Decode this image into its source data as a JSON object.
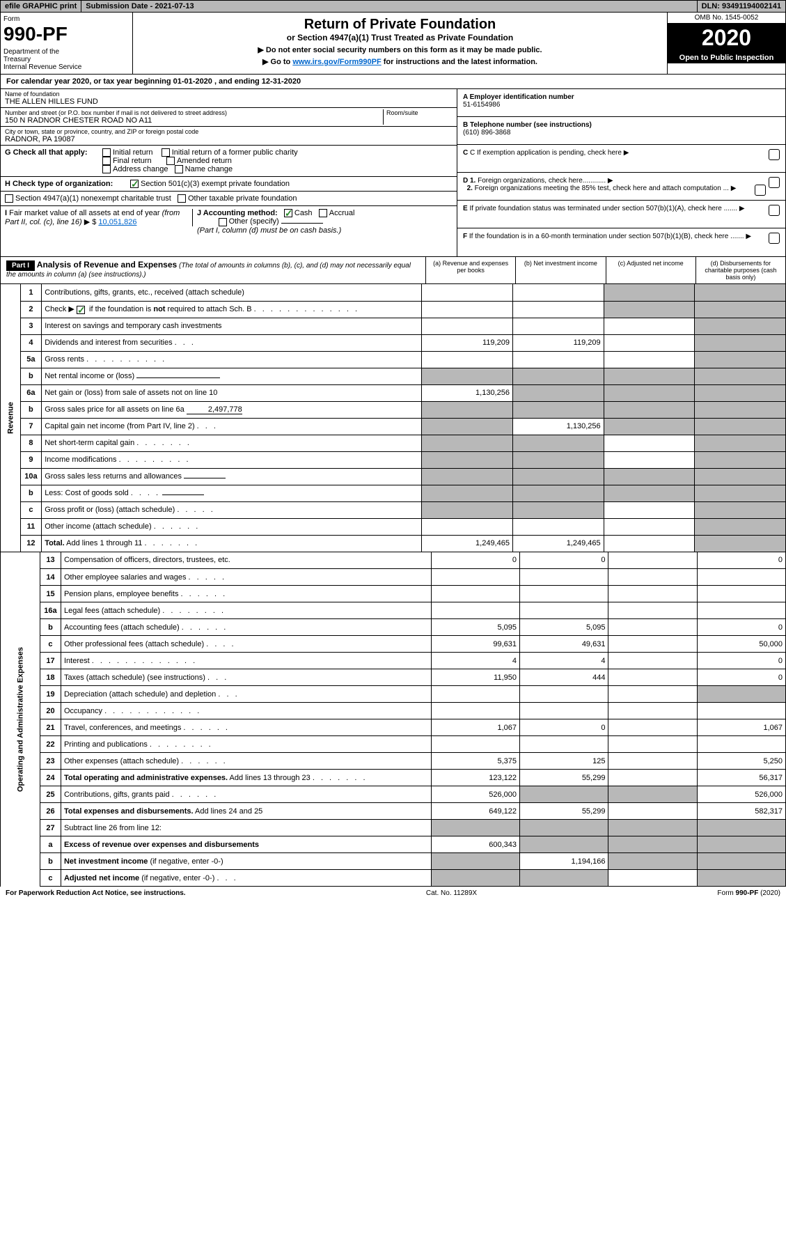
{
  "topbar": {
    "efile": "efile GRAPHIC print",
    "submission": "Submission Date - 2021-07-13",
    "dln": "DLN: 93491194002141"
  },
  "header": {
    "form_label": "Form",
    "form_num": "990-PF",
    "dept": "Department of the Treasury\nInternal Revenue Service",
    "title": "Return of Private Foundation",
    "subtitle": "or Section 4947(a)(1) Trust Treated as Private Foundation",
    "instr1": "▶ Do not enter social security numbers on this form as it may be made public.",
    "instr2_pre": "▶ Go to ",
    "instr2_link": "www.irs.gov/Form990PF",
    "instr2_post": " for instructions and the latest information.",
    "omb": "OMB No. 1545-0052",
    "year": "2020",
    "open": "Open to Public Inspection"
  },
  "calyear": "For calendar year 2020, or tax year beginning 01-01-2020                         , and ending 12-31-2020",
  "info": {
    "name_lbl": "Name of foundation",
    "name": "THE ALLEN HILLES FUND",
    "addr_lbl": "Number and street (or P.O. box number if mail is not delivered to street address)",
    "addr": "150 N RADNOR CHESTER ROAD NO A11",
    "room_lbl": "Room/suite",
    "city_lbl": "City or town, state or province, country, and ZIP or foreign postal code",
    "city": "RADNOR, PA  19087",
    "g_lbl": "G Check all that apply:",
    "g_initial": "Initial return",
    "g_initial_former": "Initial return of a former public charity",
    "g_final": "Final return",
    "g_amended": "Amended return",
    "g_addr": "Address change",
    "g_name": "Name change",
    "h_lbl": "H Check type of organization:",
    "h_501": "Section 501(c)(3) exempt private foundation",
    "h_4947": "Section 4947(a)(1) nonexempt charitable trust",
    "h_other": "Other taxable private foundation",
    "i_lbl": "I Fair market value of all assets at end of year (from Part II, col. (c), line 16) ▶ $ ",
    "i_val": "10,051,826",
    "j_lbl": "J Accounting method:",
    "j_cash": "Cash",
    "j_accrual": "Accrual",
    "j_other": "Other (specify)",
    "j_note": "(Part I, column (d) must be on cash basis.)",
    "a_lbl": "A Employer identification number",
    "a_val": "51-6154986",
    "b_lbl": "B Telephone number (see instructions)",
    "b_val": "(610) 896-3868",
    "c_lbl": "C If exemption application is pending, check here",
    "d1_lbl": "D 1. Foreign organizations, check here............",
    "d2_lbl": "2. Foreign organizations meeting the 85% test, check here and attach computation ...",
    "e_lbl": "E If private foundation status was terminated under section 507(b)(1)(A), check here .......",
    "f_lbl": "F If the foundation is in a 60-month termination under section 507(b)(1)(B), check here ......."
  },
  "part1": {
    "label": "Part I",
    "title": "Analysis of Revenue and Expenses",
    "note": " (The total of amounts in columns (b), (c), and (d) may not necessarily equal the amounts in column (a) (see instructions).)",
    "col_a": "(a)   Revenue and expenses per books",
    "col_b": "(b)   Net investment income",
    "col_c": "(c)   Adjusted net income",
    "col_d": "(d)   Disbursements for charitable purposes (cash basis only)"
  },
  "sides": {
    "revenue": "Revenue",
    "expenses": "Operating and Administrative Expenses"
  },
  "rows": [
    {
      "n": "1",
      "d": "s",
      "a": "",
      "b": "",
      "c": "s"
    },
    {
      "n": "2",
      "d": "s",
      "a": "",
      "b": "",
      "c": "s",
      "dots": true
    },
    {
      "n": "3",
      "d": "s",
      "a": "",
      "b": "",
      "c": ""
    },
    {
      "n": "4",
      "d": "s",
      "a": "119,209",
      "b": "119,209",
      "c": "",
      "dots": true
    },
    {
      "n": "5a",
      "d": "s",
      "a": "",
      "b": "",
      "c": "",
      "dots": true
    },
    {
      "n": "b",
      "d": "s",
      "a": "s",
      "b": "s",
      "c": "s",
      "fill": true
    },
    {
      "n": "6a",
      "d": "s",
      "a": "1,130,256",
      "b": "s",
      "c": "s"
    },
    {
      "n": "b",
      "d": "s",
      "a": "s",
      "b": "s",
      "c": "s",
      "fill": true,
      "fillval": "2,497,778"
    },
    {
      "n": "7",
      "d": "s",
      "a": "s",
      "b": "1,130,256",
      "c": "s",
      "dots": true
    },
    {
      "n": "8",
      "d": "s",
      "a": "s",
      "b": "s",
      "c": "",
      "dots": true
    },
    {
      "n": "9",
      "d": "s",
      "a": "s",
      "b": "s",
      "c": "",
      "dots": true
    },
    {
      "n": "10a",
      "d": "s",
      "a": "s",
      "b": "s",
      "c": "s",
      "fill": true
    },
    {
      "n": "b",
      "d": "s",
      "a": "s",
      "b": "s",
      "c": "s",
      "fill": true,
      "dots": true
    },
    {
      "n": "c",
      "d": "s",
      "a": "s",
      "b": "s",
      "c": "",
      "dots": true
    },
    {
      "n": "11",
      "d": "s",
      "a": "",
      "b": "",
      "c": "",
      "dots": true
    },
    {
      "n": "12",
      "d": "s",
      "a": "1,249,465",
      "b": "1,249,465",
      "c": "",
      "bold": true,
      "dots": true
    }
  ],
  "exp_rows": [
    {
      "n": "13",
      "d": "0",
      "a": "0",
      "b": "0",
      "c": ""
    },
    {
      "n": "14",
      "d": "",
      "a": "",
      "b": "",
      "c": "",
      "dots": true
    },
    {
      "n": "15",
      "d": "",
      "a": "",
      "b": "",
      "c": "",
      "dots": true
    },
    {
      "n": "16a",
      "d": "",
      "a": "",
      "b": "",
      "c": "",
      "dots": true
    },
    {
      "n": "b",
      "d": "0",
      "a": "5,095",
      "b": "5,095",
      "c": "",
      "dots": true
    },
    {
      "n": "c",
      "d": "50,000",
      "a": "99,631",
      "b": "49,631",
      "c": "",
      "dots": true
    },
    {
      "n": "17",
      "d": "0",
      "a": "4",
      "b": "4",
      "c": "",
      "dots": true
    },
    {
      "n": "18",
      "d": "0",
      "a": "11,950",
      "b": "444",
      "c": "",
      "dots": true
    },
    {
      "n": "19",
      "d": "s",
      "a": "",
      "b": "",
      "c": "",
      "dots": true
    },
    {
      "n": "20",
      "d": "",
      "a": "",
      "b": "",
      "c": "",
      "dots": true
    },
    {
      "n": "21",
      "d": "1,067",
      "a": "1,067",
      "b": "0",
      "c": "",
      "dots": true
    },
    {
      "n": "22",
      "d": "",
      "a": "",
      "b": "",
      "c": "",
      "dots": true
    },
    {
      "n": "23",
      "d": "5,250",
      "a": "5,375",
      "b": "125",
      "c": "",
      "dots": true
    },
    {
      "n": "24",
      "d": "56,317",
      "a": "123,122",
      "b": "55,299",
      "c": "",
      "bold": true,
      "dots": true
    },
    {
      "n": "25",
      "d": "526,000",
      "a": "526,000",
      "b": "s",
      "c": "s",
      "dots": true
    },
    {
      "n": "26",
      "d": "582,317",
      "a": "649,122",
      "b": "55,299",
      "c": "",
      "bold": true
    },
    {
      "n": "27",
      "d": "s",
      "a": "s",
      "b": "s",
      "c": "s"
    },
    {
      "n": "a",
      "d": "s",
      "a": "600,343",
      "b": "s",
      "c": "s",
      "bold": true
    },
    {
      "n": "b",
      "d": "s",
      "a": "s",
      "b": "1,194,166",
      "c": "s",
      "bold": true
    },
    {
      "n": "c",
      "d": "s",
      "a": "s",
      "b": "s",
      "c": "",
      "bold": true,
      "dots": true
    }
  ],
  "footer": {
    "left": "For Paperwork Reduction Act Notice, see instructions.",
    "mid": "Cat. No. 11289X",
    "right": "Form 990-PF (2020)"
  }
}
